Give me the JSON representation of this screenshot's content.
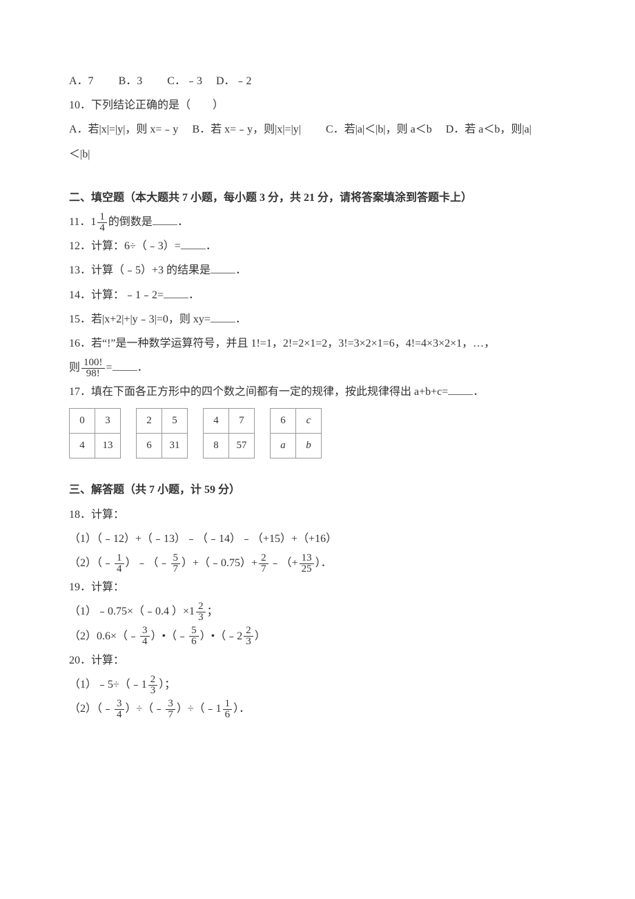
{
  "q9": {
    "optA": "A．7",
    "optB": "B．3",
    "optC": "C．﹣3",
    "optD": "D．﹣2"
  },
  "q10": {
    "stem": "10．下列结论正确的是（　　）",
    "optA_pre": "A．若|x|=|y|，则 x=﹣y",
    "optB": "B．若 x=﹣y，则|x|=|y|",
    "optC": "C．若|a|＜|b|，则 a＜b",
    "optD_pre": "D．若 a＜b，则|a|",
    "optD_tail": "＜|b|"
  },
  "sec2": {
    "title": "二、填空题（本大题共 7 小题，每小题 3 分，共 21 分，请将答案填涂到答题卡上）"
  },
  "q11": {
    "pre": "11．1",
    "frac_num": "1",
    "frac_den": "4",
    "post": "的倒数是",
    "tail": "．"
  },
  "q12": {
    "pre": "12．计算：6÷（﹣3）=",
    "tail": "．"
  },
  "q13": {
    "pre": "13．计算（﹣5）+3 的结果是",
    "tail": "．"
  },
  "q14": {
    "pre": "14．计算：﹣1﹣2=",
    "tail": "．"
  },
  "q15": {
    "pre": "15．若|x+2|+|y﹣3|=0，则 xy=",
    "tail": "．"
  },
  "q16": {
    "line1": "16．若“!”是一种数学运算符号，并且 1!=1，2!=2×1=2，3!=3×2×1=6，4!=4×3×2×1，…，",
    "pre2": "则",
    "frac_num": "100!",
    "frac_den": "98!",
    "mid2": "=",
    "tail": "．"
  },
  "q17": {
    "stem": "17．填在下面各正方形中的四个数之间都有一定的规律，按此规律得出 a+b+c=",
    "tail": "．",
    "tables": [
      [
        [
          "0",
          "3"
        ],
        [
          "4",
          "13"
        ]
      ],
      [
        [
          "2",
          "5"
        ],
        [
          "6",
          "31"
        ]
      ],
      [
        [
          "4",
          "7"
        ],
        [
          "8",
          "57"
        ]
      ],
      [
        [
          "6",
          "c"
        ],
        [
          "a",
          "b"
        ]
      ]
    ]
  },
  "sec3": {
    "title": "三、解答题（共 7 小题，计 59 分）"
  },
  "q18": {
    "stem": "18．计算：",
    "p1": "（1）（﹣12）+（﹣13）﹣（﹣14）﹣（+15）+（+16）",
    "p2_a": "（2）（﹣",
    "f1n": "1",
    "f1d": "4",
    "p2_b": "）﹣（﹣",
    "f2n": "5",
    "f2d": "7",
    "p2_c": "）+（﹣0.75）+",
    "f3n": "2",
    "f3d": "7",
    "p2_d": "﹣（+",
    "f4n": "13",
    "f4d": "25",
    "p2_e": "）．"
  },
  "q19": {
    "stem": "19．计算：",
    "p1_a": "（1）﹣0.75×（﹣0.4 ）×1",
    "f1n": "2",
    "f1d": "3",
    "p1_b": "；",
    "p2_a": "（2）0.6×（﹣",
    "f2n": "3",
    "f2d": "4",
    "p2_b": "）•（﹣",
    "f3n": "5",
    "f3d": "6",
    "p2_c": "）•（﹣2",
    "f4n": "2",
    "f4d": "3",
    "p2_d": "）"
  },
  "q20": {
    "stem": "20．计算：",
    "p1_a": "（1）﹣5÷（﹣1",
    "f1n": "2",
    "f1d": "3",
    "p1_b": "）；",
    "p2_a": "（2）（﹣",
    "f2n": "3",
    "f2d": "4",
    "p2_b": "）÷（﹣",
    "f3n": "3",
    "f3d": "7",
    "p2_c": "）÷（﹣1",
    "f4n": "1",
    "f4d": "6",
    "p2_d": "）．"
  }
}
